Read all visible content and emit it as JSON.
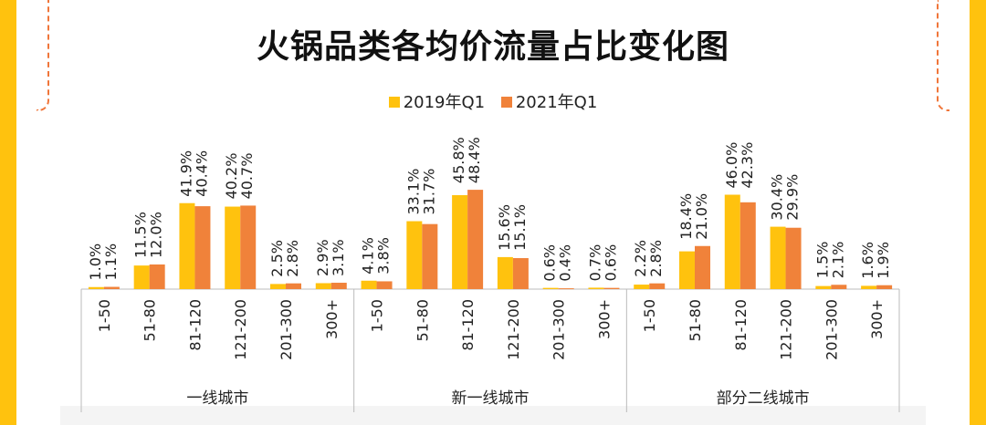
{
  "title": "火锅品类各均价流量占比变化图",
  "colors": {
    "series_2019": "#FFC20E",
    "series_2021": "#F0823A",
    "axis": "#bbbbbb",
    "frame": "#FFC20E",
    "accent_dash": "#F0763A"
  },
  "chart_data": {
    "type": "bar",
    "title": "火锅品类各均价流量占比变化图",
    "legend": [
      "2019年Q1",
      "2021年Q1"
    ],
    "legend_position": "top-center",
    "ylim": [
      0,
      60
    ],
    "groups": [
      {
        "name": "一线城市",
        "categories": [
          "1-50",
          "51-80",
          "81-120",
          "121-200",
          "201-300",
          "300+"
        ],
        "series": [
          {
            "name": "2019年Q1",
            "values": [
              1.0,
              11.5,
              41.9,
              40.2,
              2.5,
              2.9
            ],
            "labels": [
              "1.0%",
              "11.5%",
              "41.9%",
              "40.2%",
              "2.5%",
              "2.9%"
            ]
          },
          {
            "name": "2021年Q1",
            "values": [
              1.1,
              12.0,
              40.4,
              40.7,
              2.8,
              3.1
            ],
            "labels": [
              "1.1%",
              "12.0%",
              "40.4%",
              "40.7%",
              "2.8%",
              "3.1%"
            ]
          }
        ]
      },
      {
        "name": "新一线城市",
        "categories": [
          "1-50",
          "51-80",
          "81-120",
          "121-200",
          "201-300",
          "300+"
        ],
        "series": [
          {
            "name": "2019年Q1",
            "values": [
              4.1,
              33.1,
              45.8,
              15.6,
              0.6,
              0.7
            ],
            "labels": [
              "4.1%",
              "33.1%",
              "45.8%",
              "15.6%",
              "0.6%",
              "0.7%"
            ]
          },
          {
            "name": "2021年Q1",
            "values": [
              3.8,
              31.7,
              48.4,
              15.1,
              0.4,
              0.6
            ],
            "labels": [
              "3.8%",
              "31.7%",
              "48.4%",
              "15.1%",
              "0.4%",
              "0.6%"
            ]
          }
        ]
      },
      {
        "name": "部分二线城市",
        "categories": [
          "1-50",
          "51-80",
          "81-120",
          "121-200",
          "201-300",
          "300+"
        ],
        "series": [
          {
            "name": "2019年Q1",
            "values": [
              2.2,
              18.4,
              46.0,
              30.4,
              1.5,
              1.6
            ],
            "labels": [
              "2.2%",
              "18.4%",
              "46.0%",
              "30.4%",
              "1.5%",
              "1.6%"
            ]
          },
          {
            "name": "2021年Q1",
            "values": [
              2.8,
              21.0,
              42.3,
              29.9,
              2.1,
              1.9
            ],
            "labels": [
              "2.8%",
              "21.0%",
              "42.3%",
              "29.9%",
              "2.1%",
              "1.9%"
            ]
          }
        ]
      }
    ]
  }
}
